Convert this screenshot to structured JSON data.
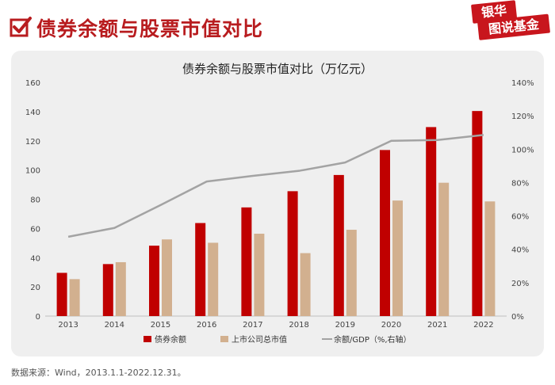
{
  "header": {
    "title": "债券余额与股票市值对比",
    "brand_line1": "银华",
    "brand_line2": "图说基金"
  },
  "footer": {
    "source": "数据来源：Wind，2013.1.1-2022.12.31。"
  },
  "colors": {
    "bond": "#c00000",
    "stock": "#d2b08f",
    "ratio_line": "#a3a3a3",
    "accent": "#b81c1f"
  },
  "chart_data": {
    "type": "bar",
    "title": "债券余额与股票市值对比（万亿元）",
    "categories": [
      "2013",
      "2014",
      "2015",
      "2016",
      "2017",
      "2018",
      "2019",
      "2020",
      "2021",
      "2022"
    ],
    "series": [
      {
        "name": "债券余额",
        "type": "bar",
        "axis": "left",
        "values": [
          29.6,
          35.6,
          48.2,
          63.7,
          74.4,
          85.5,
          96.6,
          113.7,
          129.4,
          140.4
        ]
      },
      {
        "name": "上市公司总市值",
        "type": "bar",
        "axis": "left",
        "values": [
          25.3,
          36.9,
          52.5,
          50.2,
          56.4,
          43.1,
          59.1,
          79.1,
          91.3,
          78.5
        ]
      },
      {
        "name": "余额/GDP（%,右轴）",
        "type": "line",
        "axis": "right",
        "values": [
          47.5,
          52.8,
          66.5,
          80.6,
          84.0,
          87.0,
          92.0,
          105.0,
          105.5,
          108.5
        ]
      }
    ],
    "ylim": [
      0,
      160
    ],
    "yticks": [
      "0",
      "20",
      "40",
      "60",
      "80",
      "100",
      "120",
      "140",
      "160"
    ],
    "y2lim": [
      0,
      140
    ],
    "y2ticks": [
      "0%",
      "20%",
      "40%",
      "60%",
      "80%",
      "100%",
      "120%",
      "140%"
    ],
    "xlabel": "",
    "ylabel": "",
    "legend": {
      "position": "bottom"
    },
    "grid": false
  }
}
